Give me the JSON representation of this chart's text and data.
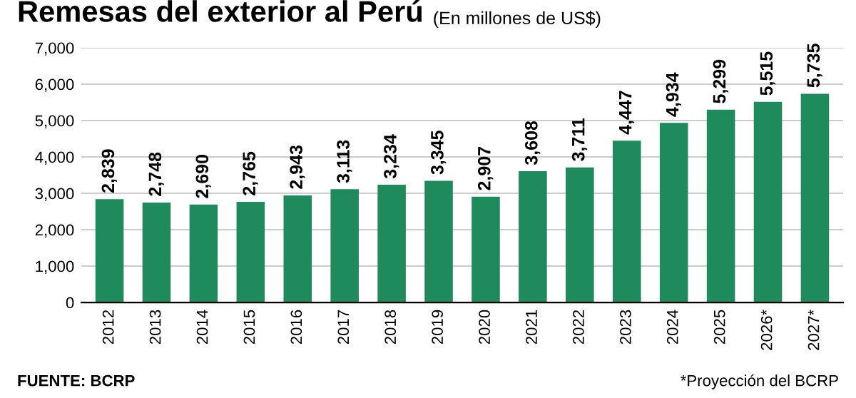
{
  "chart_data": {
    "type": "bar",
    "title": "Remesas del exterior al Perú",
    "subtitle": "(En millones de US$)",
    "categories": [
      "2012",
      "2013",
      "2014",
      "2015",
      "2016",
      "2017",
      "2018",
      "2019",
      "2020",
      "2021",
      "2022",
      "2023",
      "2024",
      "2025",
      "2026*",
      "2027*"
    ],
    "values": [
      2839,
      2748,
      2690,
      2765,
      2943,
      3113,
      3234,
      3345,
      2907,
      3608,
      3711,
      4447,
      4934,
      5299,
      5515,
      5735
    ],
    "value_labels": [
      "2,839",
      "2,748",
      "2,690",
      "2,765",
      "2,943",
      "3,113",
      "3,234",
      "3,345",
      "2,907",
      "3,608",
      "3,711",
      "4,447",
      "4,934",
      "5,299",
      "5,515",
      "5,735"
    ],
    "color": "#1f8a5b",
    "ylim": [
      0,
      7000
    ],
    "yticks": [
      0,
      {
        "value": 1000,
        "label": "1,000"
      },
      {
        "value": 2000,
        "label": "2,000"
      },
      {
        "value": 3000,
        "label": "3,000"
      },
      {
        "value": 4000,
        "label": "4,000"
      },
      {
        "value": 5000,
        "label": "5,000"
      },
      {
        "value": 6000,
        "label": "6,000"
      },
      {
        "value": 7000,
        "label": "7,000"
      }
    ],
    "grid": "y",
    "annotations": [
      "FUENTE: BCRP",
      "*Proyección del BCRP"
    ]
  }
}
